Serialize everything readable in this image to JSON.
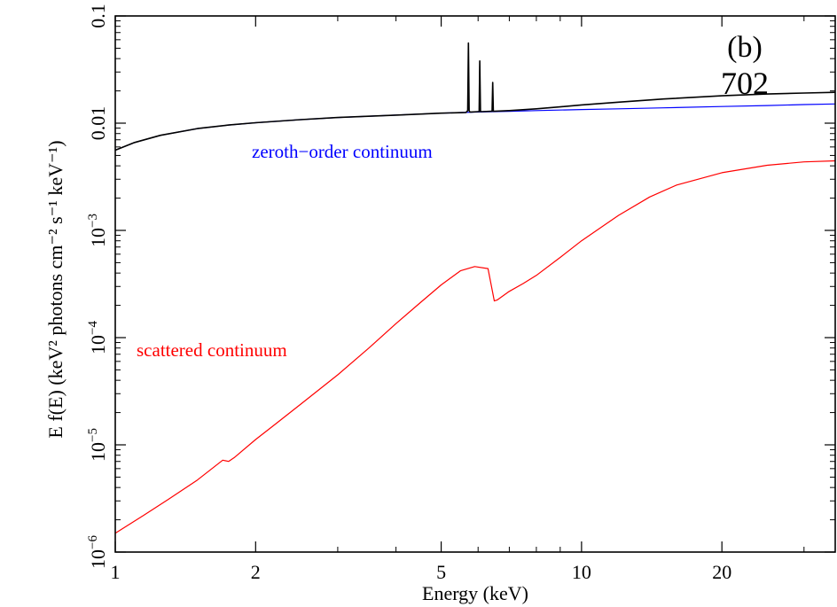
{
  "chart_data": {
    "type": "line",
    "xlabel": "Energy (keV)",
    "ylabel": "E f(E) (keV² photons cm⁻² s⁻¹ keV⁻¹)",
    "x_scale": "log",
    "y_scale": "log",
    "xlim": [
      1,
      35
    ],
    "ylim": [
      1e-06,
      0.1
    ],
    "xticks": [
      {
        "value": 1,
        "label": "1"
      },
      {
        "value": 2,
        "label": "2"
      },
      {
        "value": 5,
        "label": "5"
      },
      {
        "value": 10,
        "label": "10"
      },
      {
        "value": 20,
        "label": "20"
      }
    ],
    "yticks": [
      {
        "value": 1e-06,
        "label_base": "10",
        "label_exp": "−6"
      },
      {
        "value": 1e-05,
        "label_base": "10",
        "label_exp": "−5"
      },
      {
        "value": 0.0001,
        "label_base": "10",
        "label_exp": "−4"
      },
      {
        "value": 0.001,
        "label_base": "10",
        "label_exp": "−3"
      },
      {
        "value": 0.01,
        "label_base": "0.01",
        "label_exp": ""
      },
      {
        "value": 0.1,
        "label_base": "0.1",
        "label_exp": ""
      }
    ],
    "annotations": {
      "panel": "(b)",
      "id": "702",
      "zeroth_label": "zeroth−order continuum",
      "scattered_label": "scattered continuum"
    },
    "series": [
      {
        "key": "zeroth",
        "color": "#0000ff",
        "x": [
          1.0,
          1.1,
          1.25,
          1.5,
          1.75,
          2.0,
          2.5,
          3.0,
          4.0,
          5.0,
          6.0,
          7.0,
          8.0,
          10.0,
          12.0,
          15.0,
          20.0,
          25.0,
          30.0,
          35.0
        ],
        "y": [
          0.0056,
          0.0066,
          0.0077,
          0.0089,
          0.0096,
          0.0101,
          0.0108,
          0.0113,
          0.0119,
          0.0124,
          0.0127,
          0.0129,
          0.0131,
          0.0134,
          0.0136,
          0.0139,
          0.0143,
          0.0146,
          0.0149,
          0.0151
        ]
      },
      {
        "key": "total",
        "color": "#000000",
        "x": [
          1.0,
          1.1,
          1.25,
          1.5,
          1.75,
          2.0,
          2.5,
          3.0,
          4.0,
          5.0,
          5.65,
          5.7,
          5.72,
          5.74,
          5.76,
          5.8,
          6.0,
          6.03,
          6.05,
          6.07,
          6.1,
          6.4,
          6.43,
          6.45,
          6.47,
          6.5,
          7.0,
          8.0,
          9.0,
          10.0,
          12.0,
          15.0,
          20.0,
          25.0,
          30.0,
          35.0
        ],
        "y": [
          0.0056,
          0.0066,
          0.0077,
          0.0089,
          0.0096,
          0.0101,
          0.0108,
          0.0113,
          0.0119,
          0.0124,
          0.0126,
          0.0131,
          0.056,
          0.0131,
          0.0127,
          0.0127,
          0.0128,
          0.0128,
          0.038,
          0.0128,
          0.0128,
          0.0129,
          0.0129,
          0.024,
          0.0129,
          0.0129,
          0.0131,
          0.0136,
          0.0142,
          0.0148,
          0.0157,
          0.0168,
          0.018,
          0.0187,
          0.0191,
          0.0194
        ]
      },
      {
        "key": "scattered",
        "color": "#ff0000",
        "x": [
          1.0,
          1.15,
          1.3,
          1.5,
          1.7,
          1.75,
          1.8,
          2.0,
          2.2,
          2.5,
          3.0,
          3.5,
          4.0,
          4.5,
          5.0,
          5.5,
          5.9,
          6.3,
          6.5,
          6.6,
          7.0,
          7.5,
          8.0,
          9.0,
          10.0,
          12.0,
          14.0,
          16.0,
          20.0,
          25.0,
          30.0,
          35.0
        ],
        "y": [
          1.5e-06,
          2.2e-06,
          3.1e-06,
          4.7e-06,
          7.2e-06,
          7e-06,
          7.6e-06,
          1.12e-05,
          1.55e-05,
          2.4e-05,
          4.5e-05,
          8e-05,
          0.000135,
          0.00021,
          0.00031,
          0.00042,
          0.00046,
          0.00044,
          0.00022,
          0.000225,
          0.00027,
          0.00032,
          0.00038,
          0.00056,
          0.0008,
          0.00138,
          0.00205,
          0.00265,
          0.00345,
          0.00405,
          0.00435,
          0.00445
        ]
      }
    ]
  }
}
